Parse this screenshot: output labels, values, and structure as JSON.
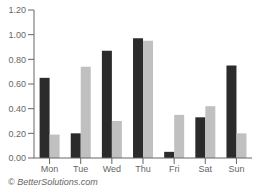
{
  "chart_data": {
    "type": "bar",
    "categories": [
      "Mon",
      "Tue",
      "Wed",
      "Thu",
      "Fri",
      "Sat",
      "Sun"
    ],
    "series": [
      {
        "color": "#2b2b2b",
        "values": [
          0.65,
          0.2,
          0.87,
          0.97,
          0.05,
          0.33,
          0.75
        ]
      },
      {
        "color": "#c0c0c0",
        "values": [
          0.19,
          0.74,
          0.3,
          0.95,
          0.35,
          0.42,
          0.2
        ]
      }
    ],
    "ylim": [
      0.0,
      1.2
    ],
    "yticks": [
      {
        "value": 0,
        "label": "0.00"
      },
      {
        "value": 0.2,
        "label": "0.20"
      },
      {
        "value": 0.4,
        "label": "0.40"
      },
      {
        "value": 0.6,
        "label": "0.60"
      },
      {
        "value": 0.8,
        "label": "0.80"
      },
      {
        "value": 1.0,
        "label": "1.00"
      },
      {
        "value": 1.2,
        "label": "1.20"
      }
    ],
    "grid": false,
    "annotations": [
      "© BetterSolutions.com"
    ]
  }
}
